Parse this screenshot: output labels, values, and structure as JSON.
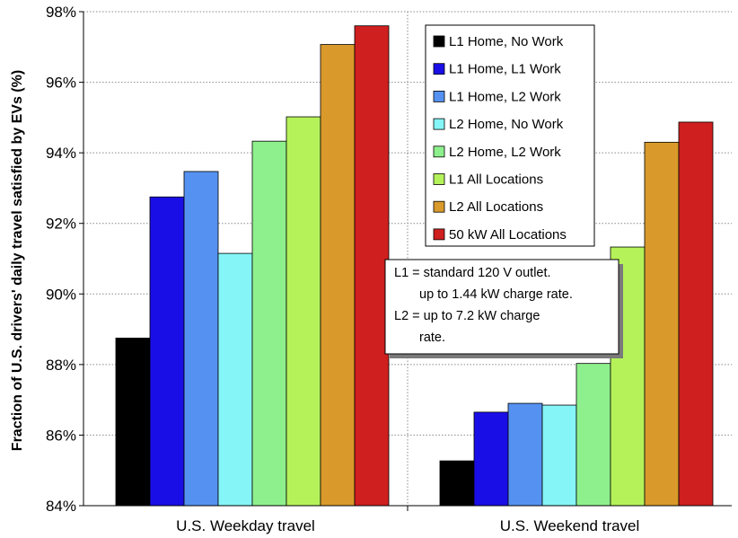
{
  "chart_data": {
    "type": "bar",
    "ylabel": "Fraction of U.S. drivers' daily travel satisfied by EVs (%)",
    "xlabel": "",
    "ylim": [
      84,
      98
    ],
    "yticks": [
      "84%",
      "86%",
      "88%",
      "90%",
      "92%",
      "94%",
      "96%",
      "98%"
    ],
    "grid": "horizontal dotted",
    "legend_position": "top-right",
    "categories": [
      "U.S. Weekday travel",
      "U.S. Weekend travel"
    ],
    "series": [
      {
        "name": "L1 Home, No Work",
        "color": "#000000",
        "values": [
          88.75,
          85.27
        ]
      },
      {
        "name": "L1 Home, L1 Work",
        "color": "#1a0ee6",
        "values": [
          92.75,
          86.65
        ]
      },
      {
        "name": "L1 Home, L2 Work",
        "color": "#5591f0",
        "values": [
          93.47,
          86.9
        ]
      },
      {
        "name": "L2 Home, No Work",
        "color": "#85f5f7",
        "values": [
          91.15,
          86.85
        ]
      },
      {
        "name": "L2 Home, L2 Work",
        "color": "#8ef08c",
        "values": [
          94.33,
          88.03
        ]
      },
      {
        "name": "L1 All Locations",
        "color": "#b5f25a",
        "values": [
          95.02,
          91.33
        ]
      },
      {
        "name": "L2 All Locations",
        "color": "#d99a2b",
        "values": [
          97.07,
          94.3
        ]
      },
      {
        "name": "50 kW All Locations",
        "color": "#cf1f1f",
        "values": [
          97.6,
          94.87
        ]
      }
    ],
    "annotation": [
      "L1 = standard 120 V outlet.",
      "up to 1.44 kW charge rate.",
      "L2 = up to 7.2 kW charge",
      "rate."
    ]
  }
}
